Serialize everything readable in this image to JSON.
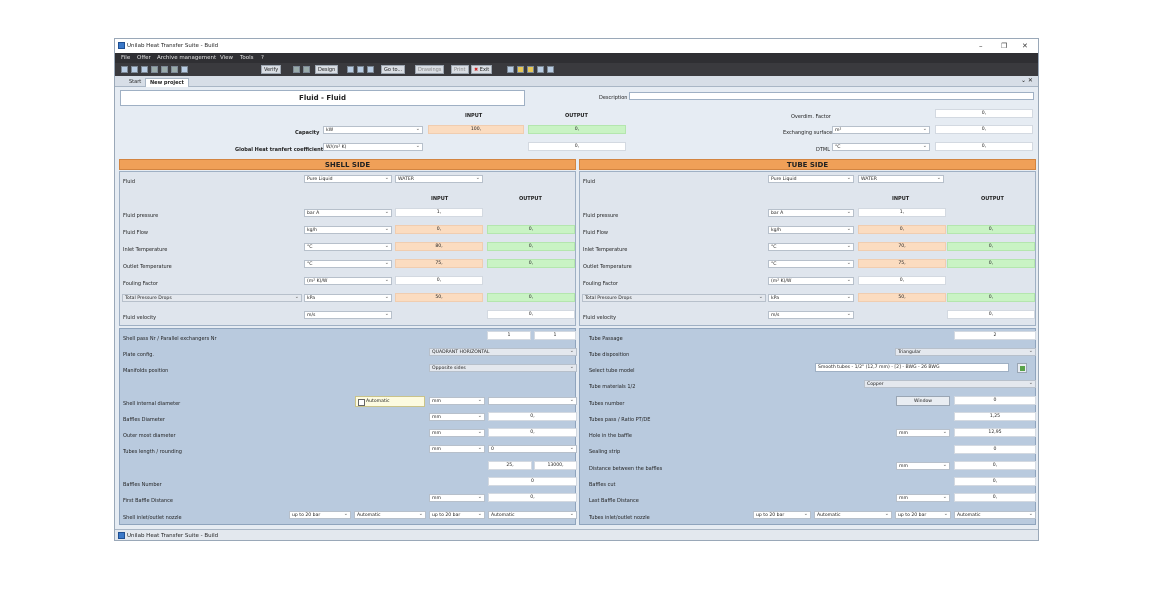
{
  "window": {
    "title": "Unilab Heat Transfer Suite - Build"
  },
  "menu": [
    "File",
    "Offer",
    "Archive management",
    "View",
    "Tools",
    "?"
  ],
  "toolbar": {
    "verify": "Verify",
    "design": "Design",
    "goto": "Go to...",
    "drawings": "Drawings",
    "print": "Print",
    "exit": "Exit"
  },
  "tabs": [
    "Start",
    "New project"
  ],
  "top": {
    "title": "Fluid - Fluid",
    "description_label": "Description",
    "description_value": "",
    "input_h": "INPUT",
    "output_h": "OUTPUT",
    "capacity": {
      "label": "Capacity",
      "unit": "kW",
      "input": "100,",
      "output": "0,"
    },
    "global": {
      "label": "Global Heat tranfert coefficient",
      "unit": "W/(m² K)",
      "output": "0,"
    },
    "overdim": {
      "label": "Overdim. Factor",
      "value": "0,"
    },
    "surface": {
      "label": "Exchanging surface",
      "unit": "m²",
      "value": "0,"
    },
    "dtml": {
      "label": "DTML",
      "unit": "°C",
      "value": "0,"
    }
  },
  "shell": {
    "header": "SHELL SIDE",
    "fluid_label": "Fluid",
    "fluid_type": "Pure Liquid",
    "fluid_name": "WATER",
    "input_h": "INPUT",
    "output_h": "OUTPUT",
    "rows": [
      {
        "label": "Fluid pressure",
        "unit": "bar A",
        "input": "1,",
        "output": ""
      },
      {
        "label": "Fluid Flow",
        "unit": "kg/h",
        "input": "0,",
        "output": "0,"
      },
      {
        "label": "Inlet Temperature",
        "unit": "°C",
        "input": "80,",
        "output": "0,"
      },
      {
        "label": "Outlet Temperature",
        "unit": "°C",
        "input": "75,",
        "output": "0,"
      },
      {
        "label": "Fouling Factor",
        "unit": "(m² K)/W",
        "input": "0,",
        "output": ""
      },
      {
        "label": "Total Pressure Drops",
        "unit": "kPa",
        "input": "50,",
        "output": "0,"
      },
      {
        "label": "Fluid velocity",
        "unit": "m/s",
        "input": "",
        "output": "0,"
      }
    ]
  },
  "tube": {
    "header": "TUBE SIDE",
    "fluid_label": "Fluid",
    "fluid_type": "Pure Liquid",
    "fluid_name": "WATER",
    "input_h": "INPUT",
    "output_h": "OUTPUT",
    "rows": [
      {
        "label": "Fluid pressure",
        "unit": "bar A",
        "input": "1,",
        "output": ""
      },
      {
        "label": "Fluid Flow",
        "unit": "kg/h",
        "input": "0,",
        "output": "0,"
      },
      {
        "label": "Inlet Temperature",
        "unit": "°C",
        "input": "70,",
        "output": "0,"
      },
      {
        "label": "Outlet Temperature",
        "unit": "°C",
        "input": "75,",
        "output": "0,"
      },
      {
        "label": "Fouling Factor",
        "unit": "(m² K)/W",
        "input": "0,",
        "output": ""
      },
      {
        "label": "Total Pressure Drops",
        "unit": "kPa",
        "input": "50,",
        "output": "0,"
      },
      {
        "label": "Fluid velocity",
        "unit": "m/s",
        "input": "",
        "output": "0,"
      }
    ]
  },
  "geom_left": {
    "shell_pass_label": "Shell pass Nr / Parallel exchangers Nr",
    "shell_pass": "1",
    "parallel": "1",
    "plate_label": "Plate config.",
    "plate_value": "QUADRANT HORIZONTAL",
    "manifolds_label": "Manifolds position",
    "manifolds_value": "Opposite sides",
    "shell_diam_label": "Shell internal diameter",
    "automatic": "Automatic",
    "mm": "mm",
    "baffles_diam_label": "Baffles Diameter",
    "baffles_diam": "0,",
    "outer_label": "Outer most diameter",
    "outer": "0,",
    "tubes_len_label": "Tubes length / rounding",
    "tubes_len_sel": "0",
    "len_min": "25,",
    "len_max": "13000,",
    "baffles_num_label": "Baffles Number",
    "baffles_num": "0",
    "first_baffle_label": "First Baffle Distance",
    "first_baffle": "0,",
    "nozzle_label": "Shell inlet/outlet nozzle",
    "nozzle_p1": "up to 20 bar",
    "nozzle_a1": "Automatic",
    "nozzle_p2": "up to 20 bar",
    "nozzle_a2": "Automatic"
  },
  "geom_right": {
    "tube_passage_label": "Tube Passage",
    "tube_passage": "2",
    "disp_label": "Tube disposition",
    "disp_value": "Triangular",
    "model_label": "Select tube model",
    "model_value": "Smooth tubes - 1/2\" (12,7 mm) - [2] - BWG - 26 BWG",
    "mat_label": "Tube materials 1/2",
    "mat_value": "Copper",
    "tubes_num_label": "Tubes number",
    "window_btn": "Window",
    "tubes_num": "0",
    "pass_label": "Tubes pass / Ratio PT/DE",
    "pass_value": "1,25",
    "hole_label": "Hole in the baffle",
    "hole_unit": "mm",
    "hole_value": "12,95",
    "strip_label": "Sealing strip",
    "strip_value": "0",
    "dist_label": "Distance between the baffles",
    "dist_unit": "mm",
    "dist_value": "0,",
    "cut_label": "Baffles cut",
    "cut_value": "0,",
    "last_label": "Last Baffle Distance",
    "last_unit": "mm",
    "last_value": "0,",
    "nozzle_label": "Tubes inlet/outlet nozzle",
    "nozzle_p1": "up to 20 bar",
    "nozzle_a1": "Automatic",
    "nozzle_p2": "up to 20 bar",
    "nozzle_a2": "Automatic"
  },
  "status": {
    "text": "Unilab Heat Transfer Suite - Build"
  }
}
